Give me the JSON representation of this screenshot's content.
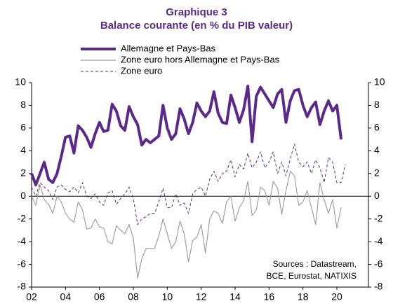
{
  "chart_data": {
    "type": "line",
    "title": [
      "Graphique 3",
      "Balance courante (en % du PIB valeur)"
    ],
    "title_color": "#5b2a86",
    "x": [
      2002,
      2002.25,
      2002.5,
      2002.75,
      2003,
      2003.25,
      2003.5,
      2003.75,
      2004,
      2004.25,
      2004.5,
      2004.75,
      2005,
      2005.25,
      2005.5,
      2005.75,
      2006,
      2006.25,
      2006.5,
      2006.75,
      2007,
      2007.25,
      2007.5,
      2007.75,
      2008,
      2008.25,
      2008.5,
      2008.75,
      2009,
      2009.25,
      2009.5,
      2009.75,
      2010,
      2010.25,
      2010.5,
      2010.75,
      2011,
      2011.25,
      2011.5,
      2011.75,
      2012,
      2012.25,
      2012.5,
      2012.75,
      2013,
      2013.25,
      2013.5,
      2013.75,
      2014,
      2014.25,
      2014.5,
      2014.75,
      2015,
      2015.25,
      2015.5,
      2015.75,
      2016,
      2016.25,
      2016.5,
      2016.75,
      2017,
      2017.25,
      2017.5,
      2017.75,
      2018,
      2018.25,
      2018.5,
      2018.75,
      2019,
      2019.25,
      2019.5,
      2019.75,
      2020,
      2020.25,
      2020.5
    ],
    "series": [
      {
        "name": "Allemagne et Pays-Bas",
        "color": "#5b2a86",
        "width": 4,
        "dash": "none",
        "values": [
          2,
          1,
          2,
          3,
          1.5,
          1.2,
          2,
          3.5,
          5.2,
          5.3,
          3.8,
          6.2,
          5.8,
          5.2,
          4.3,
          5.5,
          6.5,
          5.7,
          5.8,
          8.1,
          7.5,
          6.2,
          5.8,
          7.9,
          7,
          6.3,
          4.5,
          5,
          4.7,
          5,
          5.3,
          8,
          6,
          5,
          5.5,
          7.7,
          6.8,
          5.5,
          6.5,
          8.2,
          7.5,
          7,
          7.5,
          9.2,
          7.3,
          6.5,
          6.4,
          8.9,
          7.8,
          6.5,
          7.6,
          9.7,
          4.8,
          8.8,
          9.6,
          9,
          8.4,
          7.8,
          9,
          9.4,
          6.5,
          8.4,
          9.3,
          9.4,
          8,
          7,
          7.8,
          8.3,
          6.3,
          7.5,
          8.4,
          7.5,
          8,
          5,
          null
        ]
      },
      {
        "name": "Zone euro hors Allemagne et Pays-Bas",
        "color": "#a0a0a0",
        "width": 1.2,
        "dash": "none",
        "values": [
          0,
          -0.8,
          1,
          -0.3,
          -0.7,
          -1.5,
          0,
          -0.5,
          -1.5,
          -2,
          -2.3,
          -0.5,
          -1.2,
          -2.9,
          -2.8,
          -2,
          -2.7,
          -2.8,
          -4,
          -4.2,
          -2.6,
          -3,
          -3.3,
          -2.5,
          -3.7,
          -7.2,
          -5.5,
          -4.6,
          -4.6,
          -4.6,
          -3.5,
          -2,
          -3.3,
          -4.6,
          -4,
          -2.2,
          -3.3,
          -5.8,
          -3.9,
          -3.6,
          -2.5,
          -5,
          -2,
          -1.3,
          -1.5,
          -2.4,
          -0.5,
          0,
          -2.2,
          -1,
          -0.4,
          1.3,
          -1.7,
          -1.2,
          0.8,
          0.5,
          -0.8,
          1.3,
          0.7,
          -1.6,
          0.5,
          2.2,
          1.8,
          -0.8,
          -0.5,
          0.5,
          -1,
          -2.5,
          1.2,
          -0.3,
          -1.5,
          -0.3,
          -2.8,
          -1,
          null
        ]
      },
      {
        "name": "Zone euro",
        "color": "#5b2a86",
        "width": 1,
        "dash": "4 3",
        "values": [
          0.8,
          0,
          1.2,
          0.8,
          0.5,
          -0.3,
          0.8,
          1,
          0.6,
          0.4,
          0.8,
          0.3,
          1.2,
          0,
          -0.2,
          0.2,
          -0.5,
          -0.8,
          0.3,
          0.5,
          -0.7,
          -0.2,
          0.2,
          0.8,
          -0.2,
          -2.5,
          -2,
          -1.8,
          -1.5,
          -1.5,
          -0.5,
          0.7,
          -1,
          -1,
          0.2,
          -0.8,
          -0.6,
          -1.5,
          0.2,
          0.6,
          0.8,
          0,
          1.5,
          2.2,
          1.3,
          2,
          2.2,
          3.2,
          1.7,
          2.8,
          2.4,
          3.8,
          2.5,
          3,
          3.9,
          2.5,
          3,
          3.9,
          2,
          3,
          1.8,
          3.3,
          4.6,
          3,
          2.6,
          3,
          2,
          3.2,
          2.5,
          1.2,
          3.4,
          3,
          1.2,
          1.2,
          2.8
        ]
      }
    ],
    "xlim": [
      2002,
      2021.86
    ],
    "xticks": [
      {
        "value": 2002,
        "label": "02"
      },
      {
        "value": 2004,
        "label": "04"
      },
      {
        "value": 2006,
        "label": "06"
      },
      {
        "value": 2008,
        "label": "08"
      },
      {
        "value": 2010,
        "label": "10"
      },
      {
        "value": 2012,
        "label": "12"
      },
      {
        "value": 2014,
        "label": "14"
      },
      {
        "value": 2016,
        "label": "16"
      },
      {
        "value": 2018,
        "label": "18"
      },
      {
        "value": 2020,
        "label": "20"
      }
    ],
    "ylim": [
      -8,
      10
    ],
    "yticks": [
      -8,
      -6,
      -4,
      -2,
      0,
      2,
      4,
      6,
      8,
      10
    ],
    "y2lim": [
      -8,
      10
    ],
    "y2ticks": [
      -8,
      -6,
      -4,
      -2,
      0,
      2,
      4,
      6,
      8,
      10
    ],
    "annotation": [
      "Sources : Datastream,",
      "BCE, Eurostat, NATIXIS"
    ]
  }
}
